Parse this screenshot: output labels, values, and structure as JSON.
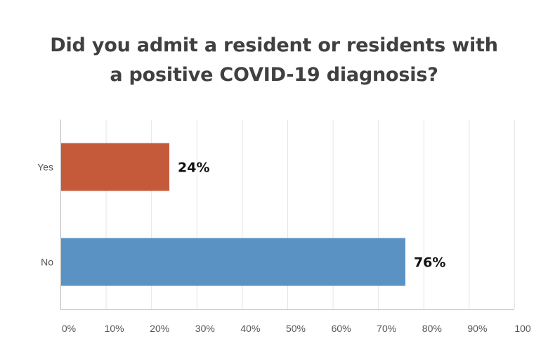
{
  "chart_data": {
    "type": "bar",
    "orientation": "horizontal",
    "title_lines": [
      "Did you admit a resident or residents with",
      "a positive COVID-19 diagnosis?"
    ],
    "categories": [
      "Yes",
      "No"
    ],
    "values": [
      24,
      76
    ],
    "value_labels": [
      "24%",
      "76%"
    ],
    "colors": [
      "#C55A3B",
      "#5B92C4"
    ],
    "xlim": [
      0,
      100
    ],
    "xticks": [
      0,
      10,
      20,
      30,
      40,
      50,
      60,
      70,
      80,
      90,
      100
    ],
    "xtick_labels": [
      "0%",
      "10%",
      "20%",
      "30%",
      "40%",
      "50%",
      "60%",
      "70%",
      "80%",
      "90%",
      "100"
    ],
    "grid": true,
    "legend": "none"
  }
}
